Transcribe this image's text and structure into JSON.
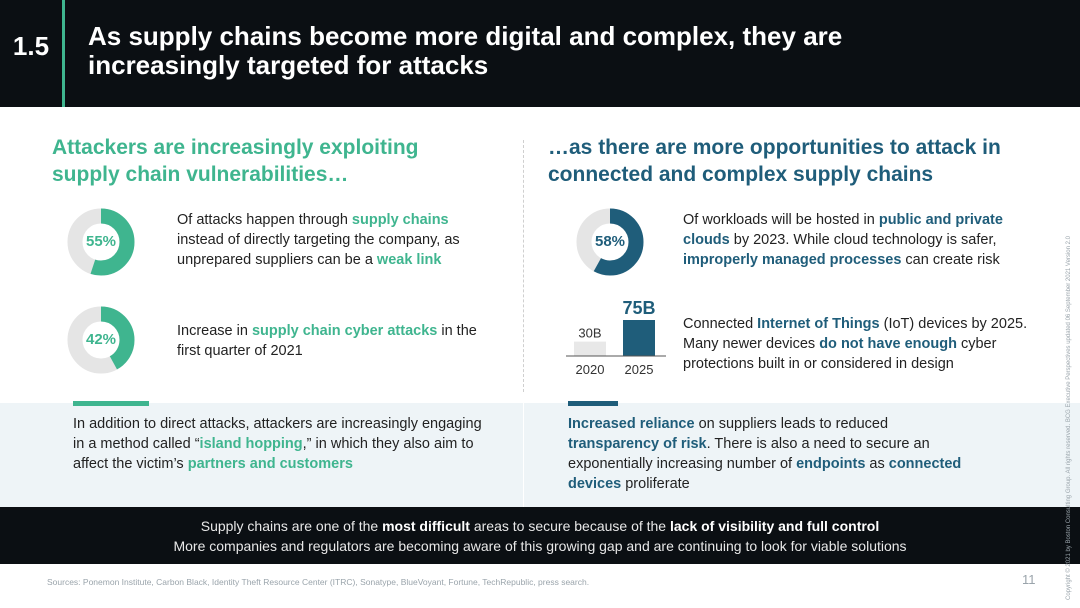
{
  "header": {
    "number": "1.5",
    "title": "As supply chains become more digital and complex, they are increasingly targeted for attacks"
  },
  "left": {
    "heading": "Attackers are increasingly exploiting supply chain vulnerabilities…",
    "stat1": {
      "value": "55%",
      "percent": 55,
      "text": [
        "Of attacks happen through ",
        "supply chains",
        " instead of directly targeting the company, as unprepared suppliers can be a ",
        "weak link"
      ]
    },
    "stat2": {
      "value": "42%",
      "percent": 42,
      "text": [
        "Increase in ",
        "supply chain cyber attacks",
        " in the first quarter of 2021"
      ]
    },
    "band": [
      "In addition to direct attacks, attackers are increasingly engaging in a method called “",
      "island hopping",
      ",” in which they also aim to affect the victim’s ",
      "partners and customers"
    ]
  },
  "right": {
    "heading": "…as there are more opportunities to attack in connected and complex supply chains",
    "stat1": {
      "value": "58%",
      "percent": 58,
      "text": [
        "Of workloads will be hosted in ",
        "public and private clouds",
        " by 2023. While cloud technology is safer, ",
        "improperly managed processes",
        " can create risk"
      ]
    },
    "stat2": {
      "text": [
        "Connected ",
        "Internet of Things",
        " (IoT) devices by 2025. Many newer devices ",
        "do not have enough",
        " cyber protections built in or considered in design"
      ]
    },
    "band": [
      "Increased reliance",
      " on suppliers leads to reduced ",
      "transparency of risk",
      ". There is also a need to secure an exponentially increasing number of ",
      "endpoints",
      " as ",
      "connected devices",
      " proliferate"
    ]
  },
  "chart_data": {
    "type": "bar",
    "categories": [
      "2020",
      "2025"
    ],
    "values": [
      30,
      75
    ],
    "labels": [
      "30B",
      "75B"
    ],
    "colors": [
      "#e8e8e8",
      "#1f5d7a"
    ]
  },
  "footer": {
    "line1": [
      "Supply chains are one of the ",
      "most difficult",
      " areas to secure because of the ",
      "lack of visibility and full control"
    ],
    "line2": "More companies and regulators are becoming aware of this growing gap and are continuing to look for viable solutions"
  },
  "sources": "Sources: Ponemon Institute, Carbon Black, Identity Theft Resource Center (ITRC), Sonatype, BlueVoyant, Fortune, TechRepublic, press search.",
  "page_number": "11",
  "copyright": "Copyright © 2021 by Boston Consulting Group. All rights reserved. BCG Executive Perspectives updated 06 September 2021 Version 2.0",
  "colors": {
    "green": "#3fb58f",
    "blue": "#1f5d7a",
    "track": "#e5e5e5",
    "dark": "#0b0f13"
  }
}
